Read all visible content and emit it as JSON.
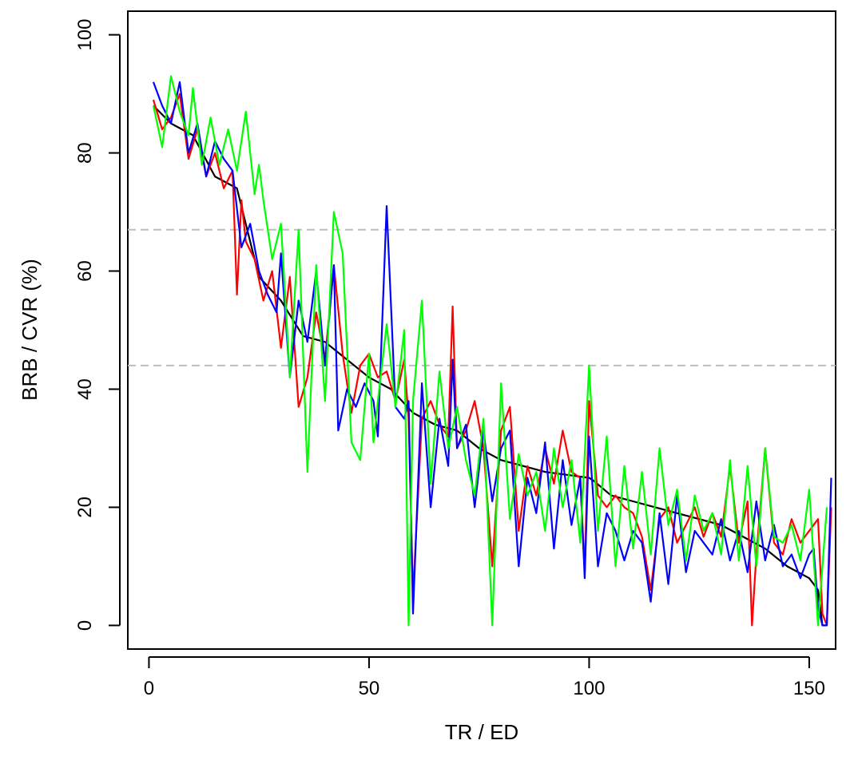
{
  "chart_data": {
    "type": "line",
    "xlabel": "TR / ED",
    "ylabel": "BRB / CVR (%)",
    "xlim": [
      -4.8,
      156
    ],
    "ylim": [
      -4,
      104
    ],
    "xticks": [
      0,
      50,
      100,
      150
    ],
    "yticks": [
      0,
      20,
      40,
      60,
      80,
      100
    ],
    "xtick_labels": [
      "0",
      "50",
      "100",
      "150"
    ],
    "ytick_labels": [
      "0",
      "20",
      "40",
      "60",
      "80",
      "100"
    ],
    "grid": false,
    "legend": "none",
    "reference_lines": [
      {
        "y": 67,
        "color": "#bdbdbd",
        "style": "dashed"
      },
      {
        "y": 44,
        "color": "#bdbdbd",
        "style": "dashed"
      }
    ],
    "series": [
      {
        "color": "#000000",
        "x": [
          1,
          5,
          10,
          15,
          20,
          25,
          30,
          35,
          40,
          45,
          50,
          55,
          60,
          65,
          70,
          75,
          80,
          85,
          90,
          95,
          100,
          101,
          105,
          110,
          115,
          120,
          125,
          130,
          135,
          140,
          145,
          150,
          152,
          153,
          154
        ],
        "values": [
          88,
          85,
          83,
          76,
          74,
          59,
          55,
          49,
          48,
          45,
          42,
          40,
          36,
          34,
          33,
          30,
          28,
          27,
          26,
          25.5,
          25,
          24.5,
          22,
          21,
          20,
          19,
          18,
          17,
          15,
          13,
          10,
          8,
          6,
          0,
          0
        ]
      },
      {
        "color": "#ff0000",
        "x": [
          1,
          3,
          5,
          7,
          9,
          11,
          13,
          15,
          17,
          19,
          20,
          21,
          22,
          24,
          26,
          28,
          30,
          32,
          34,
          36,
          38,
          40,
          42,
          44,
          46,
          48,
          50,
          52,
          54,
          56,
          58,
          59,
          60,
          62,
          64,
          66,
          68,
          69,
          70,
          72,
          74,
          76,
          78,
          80,
          82,
          84,
          86,
          88,
          90,
          92,
          94,
          96,
          98,
          99,
          100,
          102,
          104,
          106,
          108,
          110,
          112,
          114,
          116,
          118,
          120,
          122,
          124,
          126,
          128,
          130,
          132,
          134,
          136,
          137,
          138,
          140,
          142,
          144,
          146,
          148,
          150,
          152,
          153,
          154,
          155
        ],
        "values": [
          89,
          84,
          86,
          90,
          79,
          84,
          76,
          80,
          74,
          77,
          56,
          72,
          65,
          62,
          55,
          60,
          47,
          59,
          37,
          42,
          53,
          45,
          61,
          46,
          36,
          44,
          46,
          42,
          43,
          38,
          45,
          35,
          5,
          35,
          38,
          34,
          32,
          54,
          30,
          33,
          38,
          30,
          10,
          33,
          37,
          16,
          27,
          22,
          30,
          24,
          33,
          26,
          25,
          9,
          38,
          22,
          20,
          22,
          20,
          19,
          15,
          6,
          18,
          20,
          14,
          17,
          20,
          15,
          19,
          15,
          27,
          14,
          21,
          0,
          12,
          30,
          14,
          12,
          18,
          14,
          16,
          18,
          2,
          0,
          20
        ]
      },
      {
        "color": "#0000ff",
        "x": [
          1,
          3,
          5,
          7,
          9,
          11,
          13,
          15,
          17,
          19,
          21,
          23,
          25,
          27,
          29,
          30,
          32,
          34,
          36,
          38,
          40,
          42,
          43,
          45,
          47,
          49,
          51,
          52,
          54,
          56,
          58,
          59,
          60,
          62,
          64,
          66,
          68,
          69,
          70,
          72,
          74,
          76,
          78,
          80,
          82,
          84,
          86,
          88,
          90,
          92,
          94,
          96,
          98,
          99,
          100,
          102,
          104,
          106,
          108,
          110,
          112,
          114,
          116,
          118,
          120,
          122,
          124,
          126,
          128,
          130,
          132,
          134,
          136,
          138,
          140,
          142,
          144,
          146,
          148,
          150,
          151,
          152,
          153,
          154,
          155
        ],
        "values": [
          92,
          88,
          85,
          92,
          80,
          85,
          76,
          82,
          79,
          77,
          64,
          68,
          60,
          56,
          53,
          63,
          42,
          55,
          48,
          60,
          44,
          61,
          33,
          40,
          37,
          41,
          38,
          32,
          71,
          37,
          35,
          38,
          2,
          41,
          20,
          35,
          27,
          45,
          30,
          34,
          20,
          33,
          21,
          30,
          33,
          10,
          25,
          19,
          31,
          13,
          28,
          17,
          25,
          8,
          32,
          10,
          19,
          16,
          11,
          16,
          14,
          4,
          19,
          7,
          22,
          9,
          16,
          14,
          12,
          18,
          11,
          16,
          9,
          21,
          11,
          17,
          10,
          12,
          8,
          12,
          13,
          3,
          0,
          0,
          25
        ]
      },
      {
        "color": "#00ff00",
        "x": [
          1,
          3,
          5,
          7,
          9,
          10,
          12,
          14,
          16,
          18,
          20,
          22,
          24,
          25,
          26,
          28,
          30,
          32,
          34,
          36,
          38,
          40,
          42,
          44,
          46,
          48,
          50,
          51,
          52,
          54,
          56,
          58,
          59,
          60,
          62,
          64,
          66,
          68,
          70,
          72,
          74,
          76,
          78,
          80,
          82,
          84,
          86,
          88,
          90,
          92,
          94,
          96,
          98,
          100,
          102,
          104,
          106,
          108,
          110,
          112,
          114,
          116,
          118,
          120,
          122,
          124,
          126,
          128,
          130,
          132,
          134,
          136,
          138,
          140,
          142,
          144,
          146,
          148,
          150,
          152,
          154
        ],
        "values": [
          88,
          81,
          93,
          87,
          83,
          91,
          78,
          86,
          78,
          84,
          77,
          87,
          73,
          78,
          72,
          62,
          68,
          42,
          67,
          26,
          61,
          38,
          70,
          63,
          31,
          28,
          46,
          31,
          38,
          51,
          37,
          50,
          0,
          38,
          55,
          24,
          43,
          30,
          37,
          28,
          22,
          35,
          0,
          41,
          18,
          29,
          22,
          26,
          16,
          30,
          20,
          28,
          14,
          44,
          16,
          32,
          10,
          27,
          13,
          26,
          12,
          30,
          17,
          23,
          11,
          22,
          16,
          19,
          12,
          28,
          11,
          27,
          10,
          30,
          15,
          14,
          17,
          11,
          23,
          0,
          20
        ]
      }
    ]
  }
}
